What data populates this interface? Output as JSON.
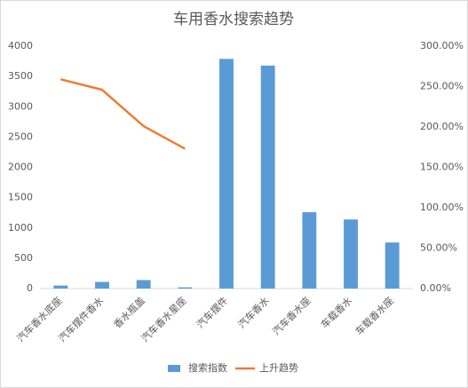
{
  "chart_data": {
    "type": "bar",
    "title": "车用香水搜索趋势",
    "categories": [
      "汽车香水底座",
      "汽车摆件香水",
      "香水瓶盖",
      "汽车香水星座",
      "汽车摆件",
      "汽车香水",
      "汽车香水座",
      "车载香水",
      "车载香水座"
    ],
    "series": [
      {
        "name": "搜索指数",
        "type": "bar",
        "color": "#5b9bd5",
        "values": [
          50,
          110,
          140,
          20,
          3790,
          3680,
          1260,
          1140,
          760
        ]
      },
      {
        "name": "上升趋势",
        "type": "line",
        "axis": "y2",
        "color": "#ed7d31",
        "values": [
          259,
          246,
          201,
          173,
          null,
          null,
          null,
          null,
          null
        ]
      }
    ],
    "ylim": [
      0,
      4000
    ],
    "yticks": [
      0,
      500,
      1000,
      1500,
      2000,
      2500,
      3000,
      3500,
      4000
    ],
    "y2lim": [
      0,
      300
    ],
    "y2ticks": [
      {
        "value": 0,
        "label": "0.00%"
      },
      {
        "value": 50,
        "label": "50.00%"
      },
      {
        "value": 100,
        "label": "100.00%"
      },
      {
        "value": 150,
        "label": "150.00%"
      },
      {
        "value": 200,
        "label": "200.00%"
      },
      {
        "value": 250,
        "label": "250.00%"
      },
      {
        "value": 300,
        "label": "300.00%"
      }
    ],
    "grid": false,
    "legend": "bottom"
  }
}
